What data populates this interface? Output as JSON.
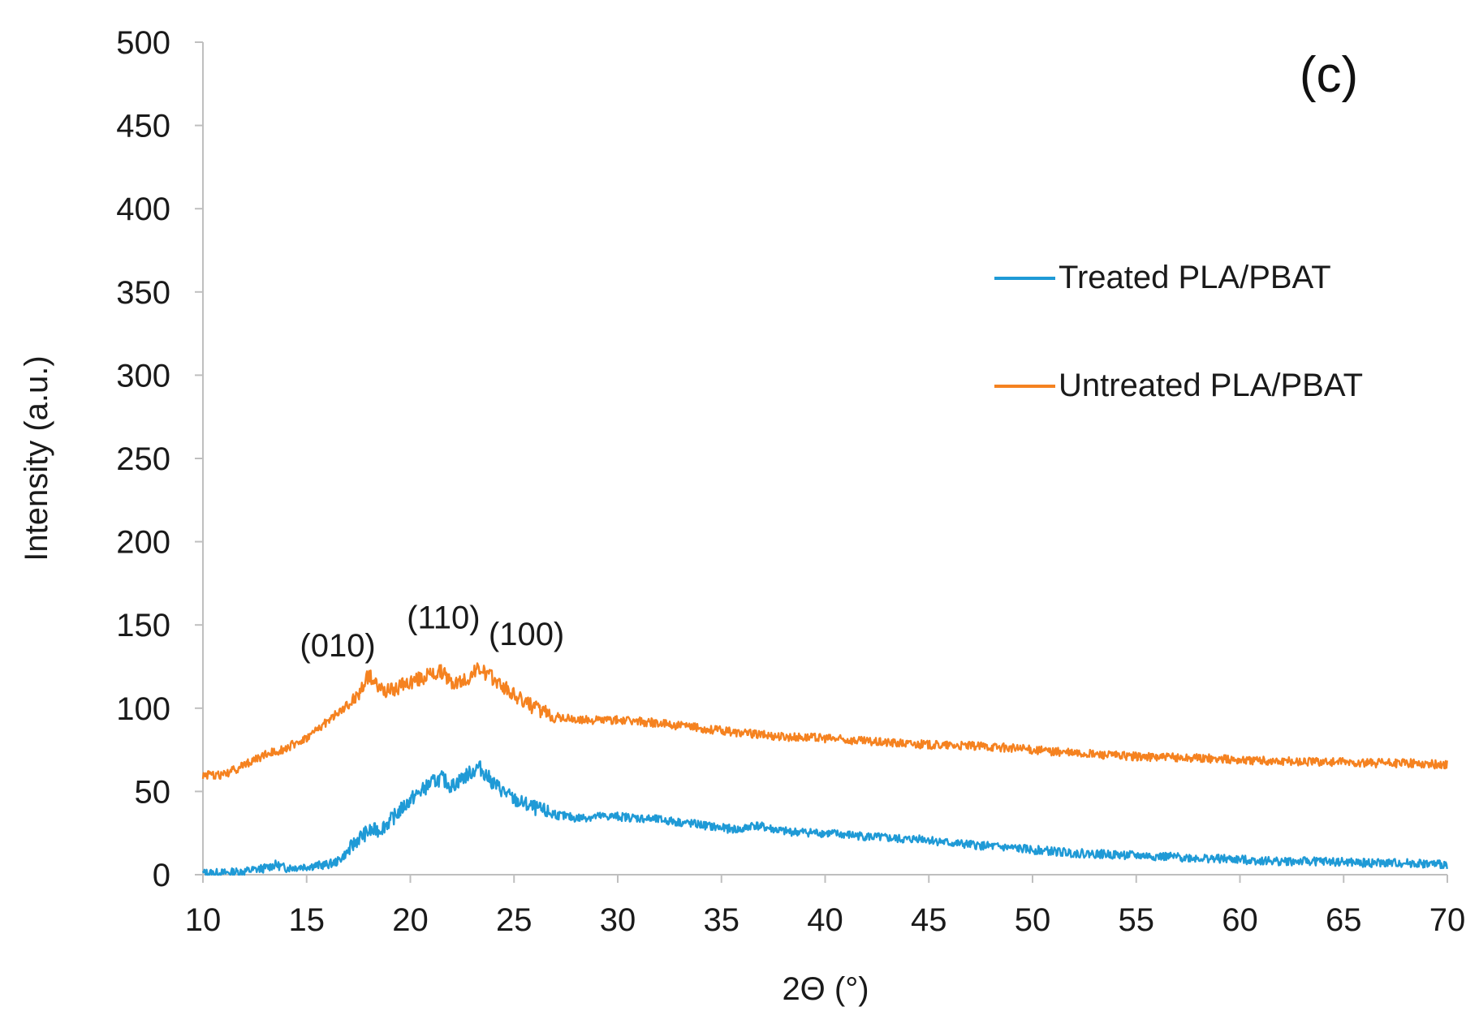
{
  "chart_data": {
    "type": "line",
    "panel_label": "(c)",
    "xlabel": "2Θ (°)",
    "ylabel": "Intensity (a.u.)",
    "xlim": [
      10,
      70
    ],
    "ylim": [
      0,
      500
    ],
    "xticks": [
      10,
      15,
      20,
      25,
      30,
      35,
      40,
      45,
      50,
      55,
      60,
      65,
      70
    ],
    "yticks": [
      0,
      50,
      100,
      150,
      200,
      250,
      300,
      350,
      400,
      450,
      500
    ],
    "grid": false,
    "legend_position": "right",
    "series": [
      {
        "name": "Treated PLA/PBAT",
        "color": "#1f9ad6",
        "x": [
          10,
          11,
          12,
          13,
          13.5,
          14,
          15,
          16,
          16.5,
          17,
          17.5,
          18,
          18.5,
          19,
          20,
          21,
          21.5,
          22,
          22.5,
          23,
          23.3,
          24,
          25,
          26,
          27,
          28,
          29,
          30,
          32,
          34,
          35,
          36,
          36.5,
          38,
          40,
          42,
          44,
          44.5,
          46,
          48,
          50,
          52,
          54,
          56,
          58,
          60,
          62,
          64,
          66,
          68,
          70
        ],
        "y": [
          1,
          1,
          2,
          4,
          6,
          4,
          5,
          6,
          8,
          14,
          22,
          26,
          27,
          32,
          45,
          55,
          58,
          53,
          58,
          62,
          65,
          55,
          45,
          40,
          36,
          34,
          35,
          35,
          33,
          30,
          28,
          27,
          30,
          26,
          25,
          23,
          21,
          22,
          19,
          17,
          15,
          13,
          12,
          11,
          10,
          9,
          8,
          8,
          7,
          7,
          6
        ]
      },
      {
        "name": "Untreated PLA/PBAT",
        "color": "#f58220",
        "x": [
          10,
          11,
          12,
          13,
          14,
          15,
          16,
          17,
          17.5,
          18,
          18.5,
          19,
          20,
          21,
          21.5,
          22,
          22.5,
          23,
          23.3,
          24,
          25,
          26,
          27,
          28,
          30,
          32,
          34,
          36,
          38,
          40,
          42,
          45,
          48,
          50,
          52,
          55,
          58,
          60,
          62,
          64,
          66,
          68,
          70
        ],
        "y": [
          60,
          60,
          66,
          72,
          76,
          82,
          92,
          102,
          108,
          120,
          112,
          110,
          116,
          120,
          122,
          115,
          116,
          120,
          124,
          118,
          108,
          100,
          95,
          93,
          93,
          91,
          88,
          85,
          83,
          82,
          80,
          78,
          77,
          75,
          73,
          71,
          70,
          69,
          68,
          68,
          67,
          67,
          66
        ]
      }
    ],
    "annotations": [
      {
        "text": "(010)",
        "x": 16.5,
        "y": 131
      },
      {
        "text": "(110)",
        "x": 21.6,
        "y": 148
      },
      {
        "text": "(100)",
        "x": 25.6,
        "y": 138
      }
    ]
  }
}
